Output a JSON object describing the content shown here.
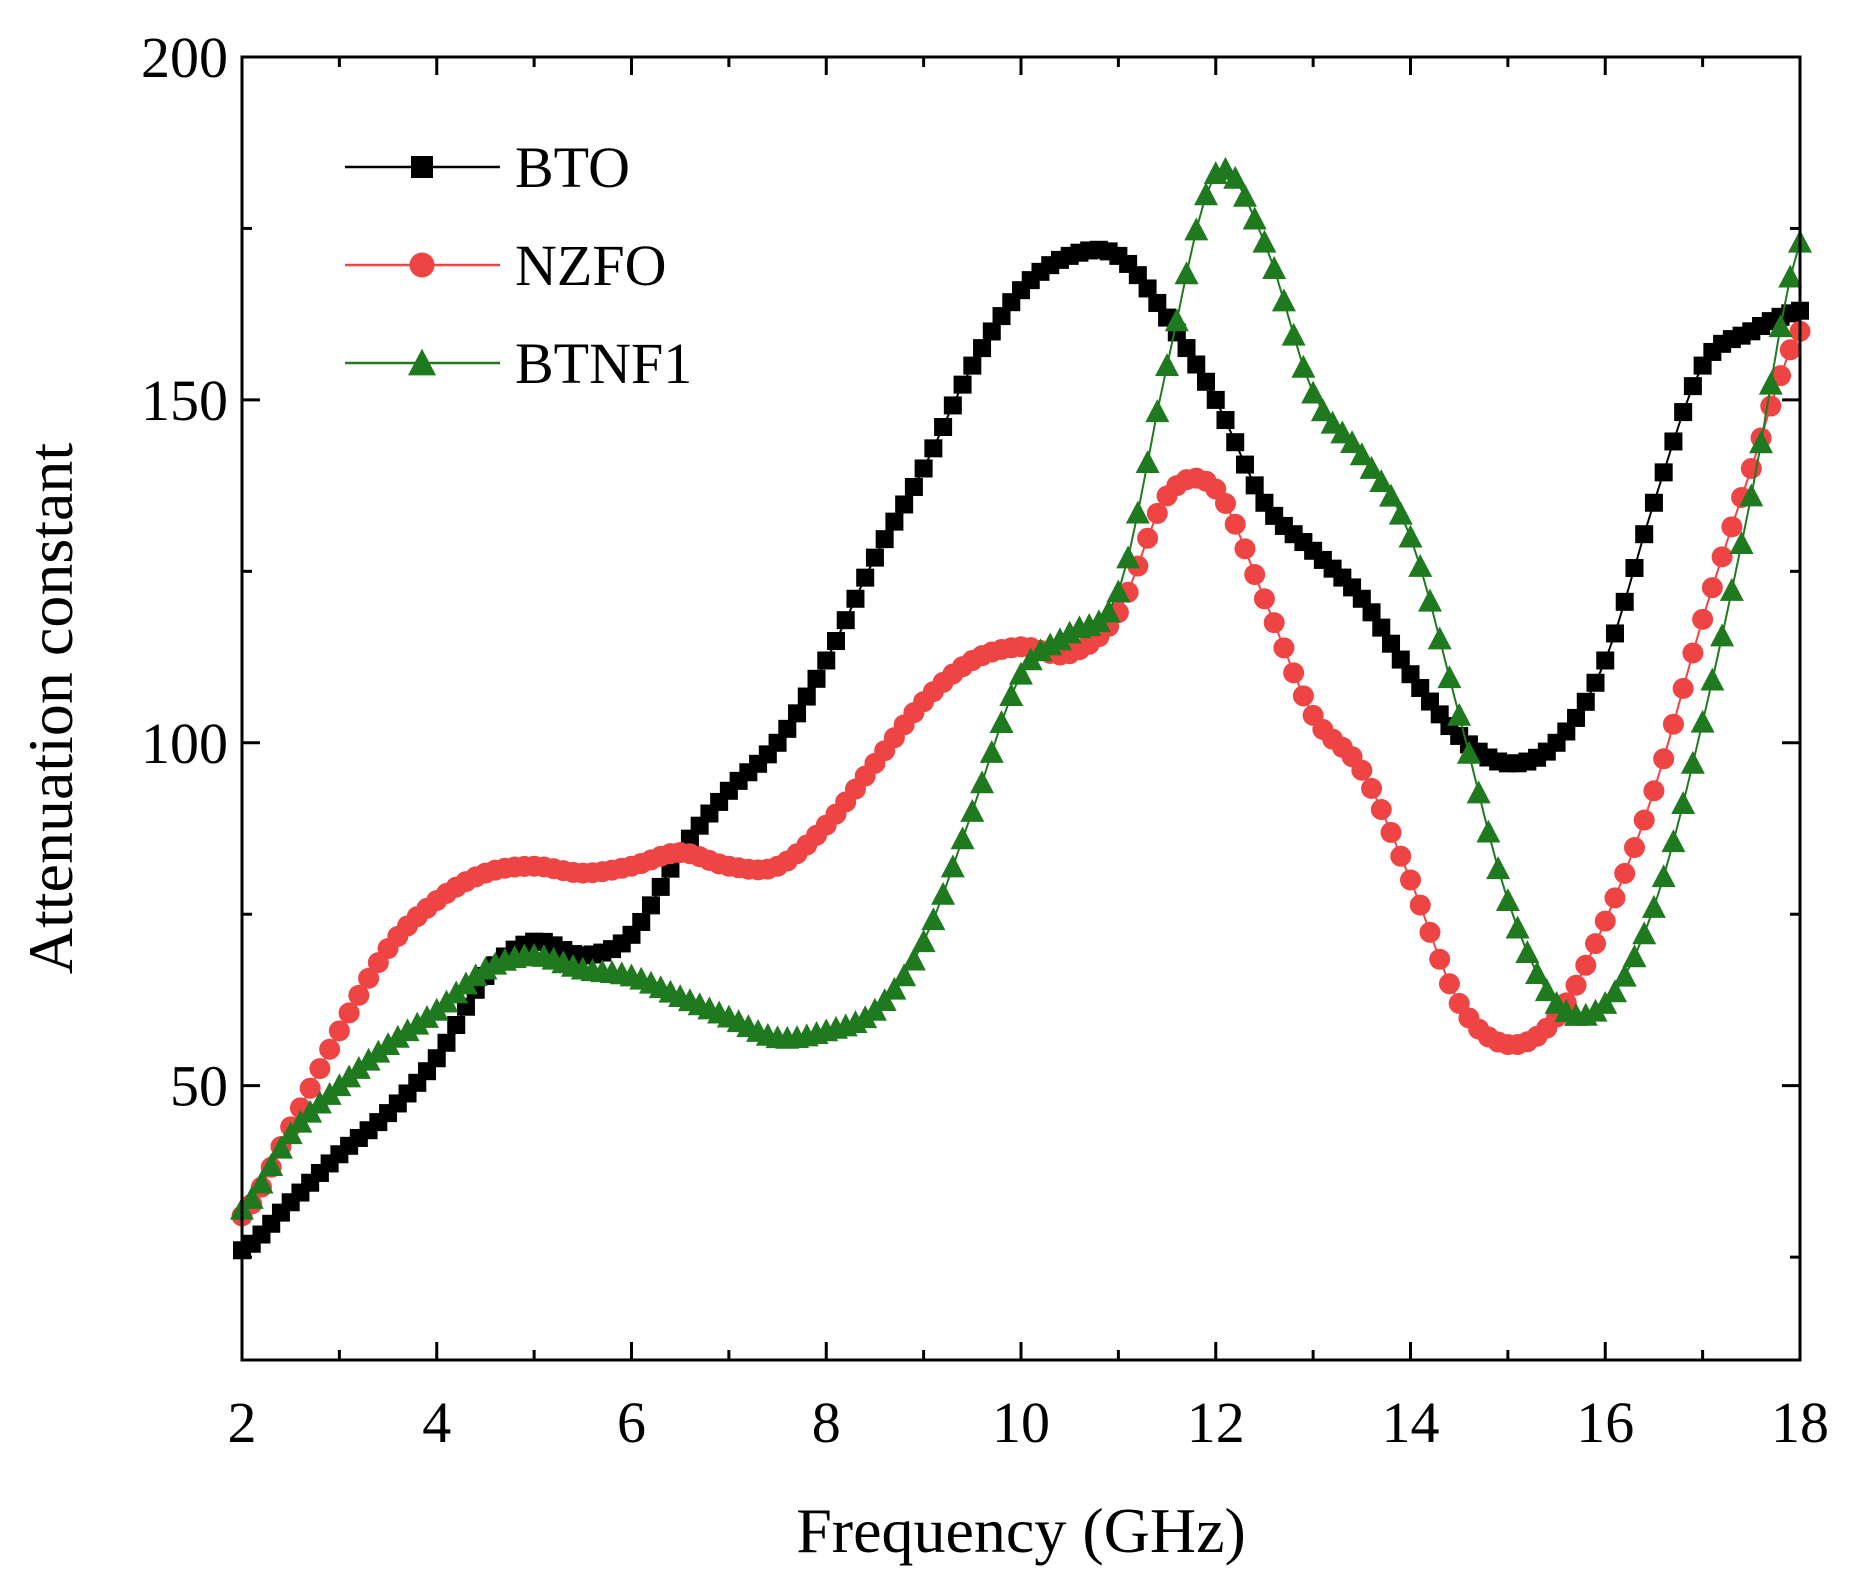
{
  "chart_data": {
    "type": "line",
    "title": "",
    "xlabel": "Frequency (GHz)",
    "ylabel": "Attenuation constant",
    "xlim": [
      2,
      18
    ],
    "ylim": [
      10,
      200
    ],
    "xticks": [
      "2",
      "4",
      "6",
      "8",
      "10",
      "12",
      "14",
      "16",
      "18"
    ],
    "yticks": [
      "50",
      "100",
      "150",
      "200"
    ],
    "grid": false,
    "legend_position": "top-left",
    "series": [
      {
        "name": "BTO",
        "marker": "square",
        "color": "#000000",
        "points": [
          [
            2,
            26
          ],
          [
            2.5,
            33
          ],
          [
            3,
            40
          ],
          [
            3.5,
            46
          ],
          [
            4,
            54
          ],
          [
            4.5,
            66
          ],
          [
            5,
            71
          ],
          [
            5.5,
            69
          ],
          [
            6,
            72
          ],
          [
            6.5,
            84
          ],
          [
            7,
            93
          ],
          [
            7.5,
            100
          ],
          [
            8,
            112
          ],
          [
            8.5,
            127
          ],
          [
            9,
            140
          ],
          [
            9.5,
            155
          ],
          [
            10,
            166
          ],
          [
            10.5,
            171
          ],
          [
            11,
            171
          ],
          [
            11.5,
            162
          ],
          [
            12,
            150
          ],
          [
            12.5,
            135
          ],
          [
            13,
            128
          ],
          [
            13.5,
            121
          ],
          [
            14,
            110
          ],
          [
            14.5,
            101
          ],
          [
            15,
            97
          ],
          [
            15.5,
            100
          ],
          [
            16,
            112
          ],
          [
            16.5,
            135
          ],
          [
            17,
            155
          ],
          [
            17.5,
            160
          ],
          [
            18,
            163
          ]
        ]
      },
      {
        "name": "NZFO",
        "marker": "circle",
        "color": "#ef4444",
        "points": [
          [
            2,
            31
          ],
          [
            2.5,
            44
          ],
          [
            3,
            58
          ],
          [
            3.5,
            70
          ],
          [
            4,
            77
          ],
          [
            4.5,
            81
          ],
          [
            5,
            82
          ],
          [
            5.5,
            81
          ],
          [
            6,
            82
          ],
          [
            6.5,
            84
          ],
          [
            7,
            82
          ],
          [
            7.5,
            82
          ],
          [
            8,
            88
          ],
          [
            8.5,
            97
          ],
          [
            9,
            106
          ],
          [
            9.5,
            112
          ],
          [
            10,
            114
          ],
          [
            10.5,
            113
          ],
          [
            11,
            119
          ],
          [
            11.5,
            136
          ],
          [
            12,
            137
          ],
          [
            12.5,
            121
          ],
          [
            13,
            104
          ],
          [
            13.5,
            96
          ],
          [
            14,
            80
          ],
          [
            14.5,
            62
          ],
          [
            15,
            56
          ],
          [
            15.5,
            60
          ],
          [
            16,
            74
          ],
          [
            16.5,
            93
          ],
          [
            17,
            118
          ],
          [
            17.5,
            140
          ],
          [
            18,
            160
          ]
        ]
      },
      {
        "name": "BTNF1",
        "marker": "triangle",
        "color": "#1f7a1f",
        "points": [
          [
            2,
            32
          ],
          [
            2.5,
            43
          ],
          [
            3,
            50
          ],
          [
            3.5,
            56
          ],
          [
            4,
            61
          ],
          [
            4.5,
            67
          ],
          [
            5,
            69
          ],
          [
            5.5,
            67
          ],
          [
            6,
            66
          ],
          [
            6.5,
            63
          ],
          [
            7,
            60
          ],
          [
            7.5,
            57
          ],
          [
            8,
            58
          ],
          [
            8.5,
            61
          ],
          [
            9,
            71
          ],
          [
            9.5,
            90
          ],
          [
            10,
            110
          ],
          [
            10.5,
            116
          ],
          [
            11,
            122
          ],
          [
            11.5,
            155
          ],
          [
            12,
            183
          ],
          [
            12.5,
            173
          ],
          [
            13,
            151
          ],
          [
            13.5,
            142
          ],
          [
            14,
            130
          ],
          [
            14.5,
            104
          ],
          [
            15,
            77
          ],
          [
            15.5,
            62
          ],
          [
            16,
            62
          ],
          [
            16.5,
            76
          ],
          [
            17,
            103
          ],
          [
            17.5,
            136
          ],
          [
            18,
            173
          ]
        ]
      }
    ]
  }
}
